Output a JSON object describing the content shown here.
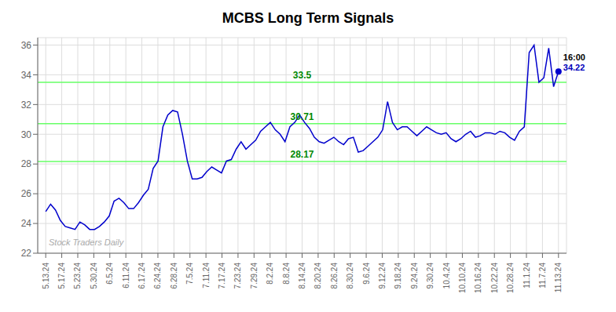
{
  "chart_data": {
    "type": "line",
    "title": "MCBS Long Term Signals",
    "color": "#0000cc",
    "grid": true,
    "watermark": "Stock Traders Daily",
    "watermark_color": "#aaaaaa",
    "reference_lines": [
      {
        "value": 28.17,
        "label": "28.17",
        "color": "#66ff66",
        "label_color": "#008800"
      },
      {
        "value": 30.71,
        "label": "30.71",
        "color": "#66ff66",
        "label_color": "#008800"
      },
      {
        "value": 33.5,
        "label": "33.5",
        "color": "#66ff66",
        "label_color": "#008800"
      }
    ],
    "annotations": [
      {
        "text": "16:00",
        "color": "#000000"
      },
      {
        "text": "34.22",
        "color": "#0000bb"
      }
    ],
    "xlim": [
      -0.5,
      32.5
    ],
    "xticks": [
      {
        "value": 0,
        "label": "5.13.24"
      },
      {
        "value": 1,
        "label": "5.17.24"
      },
      {
        "value": 2,
        "label": "5.23.24"
      },
      {
        "value": 3,
        "label": "5.30.24"
      },
      {
        "value": 4,
        "label": "6.5.24"
      },
      {
        "value": 5,
        "label": "6.11.24"
      },
      {
        "value": 6,
        "label": "6.17.24"
      },
      {
        "value": 7,
        "label": "6.24.24"
      },
      {
        "value": 8,
        "label": "6.28.24"
      },
      {
        "value": 9,
        "label": "7.5.24"
      },
      {
        "value": 10,
        "label": "7.11.24"
      },
      {
        "value": 11,
        "label": "7.17.24"
      },
      {
        "value": 12,
        "label": "7.23.24"
      },
      {
        "value": 13,
        "label": "7.29.24"
      },
      {
        "value": 14,
        "label": "8.2.24"
      },
      {
        "value": 15,
        "label": "8.8.24"
      },
      {
        "value": 16,
        "label": "8.14.24"
      },
      {
        "value": 17,
        "label": "8.20.24"
      },
      {
        "value": 18,
        "label": "8.26.24"
      },
      {
        "value": 19,
        "label": "8.30.24"
      },
      {
        "value": 20,
        "label": "9.6.24"
      },
      {
        "value": 21,
        "label": "9.12.24"
      },
      {
        "value": 22,
        "label": "9.18.24"
      },
      {
        "value": 23,
        "label": "9.24.24"
      },
      {
        "value": 24,
        "label": "9.30.24"
      },
      {
        "value": 25,
        "label": "10.4.24"
      },
      {
        "value": 26,
        "label": "10.10.24"
      },
      {
        "value": 27,
        "label": "10.16.24"
      },
      {
        "value": 28,
        "label": "10.22.24"
      },
      {
        "value": 29,
        "label": "10.28.24"
      },
      {
        "value": 30,
        "label": "11.1.24"
      },
      {
        "value": 31,
        "label": "11.7.24"
      },
      {
        "value": 32,
        "label": "11.13.24"
      }
    ],
    "ylim": [
      22,
      36.5
    ],
    "yticks": [
      22,
      24,
      26,
      28,
      30,
      32,
      34,
      36
    ],
    "x": [
      0,
      0.304762,
      0.609524,
      0.914286,
      1.219048,
      1.52381,
      1.828571,
      2.133333,
      2.438095,
      2.742857,
      3.047619,
      3.352381,
      3.657143,
      3.961905,
      4.266667,
      4.571429,
      4.87619,
      5.180952,
      5.485714,
      5.790476,
      6.095238,
      6.4,
      6.704762,
      7.009524,
      7.314286,
      7.619048,
      7.92381,
      8.228571,
      8.533333,
      8.838095,
      9.142857,
      9.447619,
      9.752381,
      10.057143,
      10.361905,
      10.666667,
      10.971429,
      11.27619,
      11.580952,
      11.885714,
      12.190476,
      12.495238,
      12.8,
      13.104762,
      13.409524,
      13.714286,
      14.019048,
      14.32381,
      14.628571,
      14.933333,
      15.238095,
      15.542857,
      15.847619,
      16.152381,
      16.457143,
      16.761905,
      17.066667,
      17.371429,
      17.67619,
      17.980952,
      18.285714,
      18.590476,
      18.895238,
      19.2,
      19.504762,
      19.809524,
      20.114286,
      20.419048,
      20.72381,
      21.028571,
      21.333333,
      21.638095,
      21.942857,
      22.247619,
      22.552381,
      22.857143,
      23.161905,
      23.466667,
      23.771429,
      24.07619,
      24.380952,
      24.685714,
      24.990476,
      25.295238,
      25.6,
      25.904762,
      26.209524,
      26.514286,
      26.819048,
      27.12381,
      27.428571,
      27.733333,
      28.038095,
      28.342857,
      28.647619,
      28.952381,
      29.257143,
      29.561905,
      29.866667,
      30.171429,
      30.47619,
      30.780952,
      31.085714,
      31.390476,
      31.695238,
      32
    ],
    "values": [
      24.8,
      25.3,
      24.9,
      24.2,
      23.8,
      23.7,
      23.6,
      24.1,
      23.9,
      23.6,
      23.6,
      23.8,
      24.1,
      24.5,
      25.5,
      25.7,
      25.4,
      25.0,
      25.0,
      25.4,
      25.9,
      26.3,
      27.7,
      28.2,
      30.5,
      31.3,
      31.6,
      31.5,
      30.0,
      28.2,
      27.0,
      27.0,
      27.1,
      27.5,
      27.8,
      27.6,
      27.4,
      28.2,
      28.3,
      29.0,
      29.5,
      29.0,
      29.3,
      29.6,
      30.2,
      30.5,
      30.8,
      30.3,
      30.0,
      29.5,
      30.5,
      30.8,
      31.3,
      30.8,
      30.4,
      29.8,
      29.5,
      29.4,
      29.6,
      29.8,
      29.5,
      29.3,
      29.7,
      29.8,
      28.8,
      28.9,
      29.2,
      29.5,
      29.8,
      30.3,
      32.2,
      30.8,
      30.3,
      30.5,
      30.5,
      30.2,
      29.9,
      30.2,
      30.5,
      30.3,
      30.1,
      30.0,
      30.1,
      29.7,
      29.5,
      29.7,
      30.0,
      30.2,
      29.8,
      29.9,
      30.1,
      30.1,
      30.0,
      30.2,
      30.1,
      29.8,
      29.6,
      30.2,
      30.5,
      35.5,
      36.0,
      33.5,
      33.8,
      35.8,
      33.2,
      34.22
    ]
  }
}
